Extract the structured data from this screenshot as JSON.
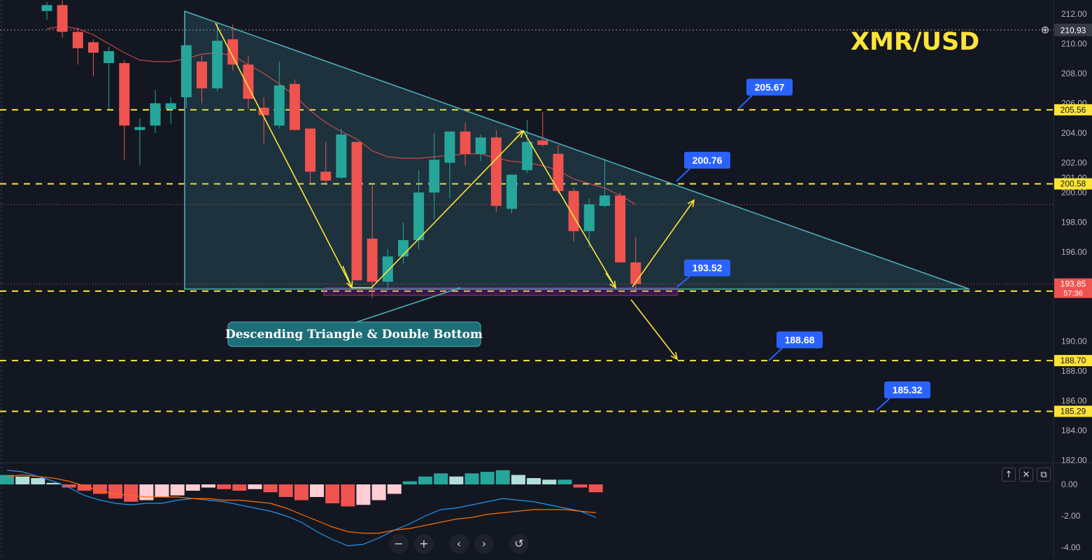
{
  "title": "XMR/USD",
  "chart_data": {
    "type": "candlestick",
    "pair": "XMR/USD",
    "price_axis": {
      "ticks": [
        "212.00",
        "210.00",
        "208.00",
        "206.00",
        "204.00",
        "202.00",
        "201.00",
        "200.00",
        "198.00",
        "196.00",
        "194.00",
        "190.00",
        "188.00",
        "186.00",
        "184.00",
        "182.00"
      ],
      "ylim": [
        181.5,
        212.5
      ]
    },
    "current_price": "210.93",
    "last_price": "193.85",
    "countdown": "57:36",
    "horizontal_levels": [
      {
        "label": "205.56",
        "value": 205.56
      },
      {
        "label": "200.58",
        "value": 200.58
      },
      {
        "label": "193.37",
        "value": 193.37
      },
      {
        "label": "188.70",
        "value": 188.7
      },
      {
        "label": "185.29",
        "value": 185.29
      }
    ],
    "callouts": [
      {
        "text": "205.67",
        "value": 205.67
      },
      {
        "text": "200.76",
        "value": 200.76
      },
      {
        "text": "193.52",
        "value": 193.52
      },
      {
        "text": "188.68",
        "value": 188.68
      },
      {
        "text": "185.32",
        "value": 185.32
      }
    ],
    "annotation": "Descending Triangle & Double Bottom",
    "candles": [
      {
        "o": 212.2,
        "h": 212.8,
        "l": 211.6,
        "c": 212.6
      },
      {
        "o": 212.6,
        "h": 212.9,
        "l": 210.4,
        "c": 210.8
      },
      {
        "o": 210.8,
        "h": 211.1,
        "l": 208.6,
        "c": 209.7
      },
      {
        "o": 210.1,
        "h": 210.3,
        "l": 207.8,
        "c": 209.4
      },
      {
        "o": 208.7,
        "h": 209.8,
        "l": 205.6,
        "c": 209.5
      },
      {
        "o": 208.7,
        "h": 208.9,
        "l": 202.2,
        "c": 204.5
      },
      {
        "o": 204.2,
        "h": 205.0,
        "l": 201.8,
        "c": 204.4
      },
      {
        "o": 204.5,
        "h": 206.9,
        "l": 204.0,
        "c": 206.0
      },
      {
        "o": 205.6,
        "h": 206.4,
        "l": 204.6,
        "c": 206.0
      },
      {
        "o": 206.4,
        "h": 209.9,
        "l": 205.7,
        "c": 209.9
      },
      {
        "o": 208.8,
        "h": 209.2,
        "l": 206.0,
        "c": 207.0
      },
      {
        "o": 207.0,
        "h": 211.4,
        "l": 206.8,
        "c": 210.2
      },
      {
        "o": 210.3,
        "h": 211.3,
        "l": 208.2,
        "c": 208.6
      },
      {
        "o": 208.6,
        "h": 209.2,
        "l": 205.6,
        "c": 206.3
      },
      {
        "o": 205.7,
        "h": 206.4,
        "l": 203.3,
        "c": 205.2
      },
      {
        "o": 204.5,
        "h": 208.8,
        "l": 204.3,
        "c": 207.2
      },
      {
        "o": 207.3,
        "h": 207.6,
        "l": 204.2,
        "c": 204.2
      },
      {
        "o": 204.3,
        "h": 204.3,
        "l": 200.6,
        "c": 201.4
      },
      {
        "o": 201.4,
        "h": 203.4,
        "l": 200.6,
        "c": 200.8
      },
      {
        "o": 201.0,
        "h": 204.3,
        "l": 200.9,
        "c": 203.9
      },
      {
        "o": 203.4,
        "h": 203.4,
        "l": 194.1,
        "c": 194.1
      },
      {
        "o": 196.9,
        "h": 200.5,
        "l": 192.9,
        "c": 194.0
      },
      {
        "o": 194.0,
        "h": 196.2,
        "l": 193.4,
        "c": 195.7
      },
      {
        "o": 195.7,
        "h": 198.0,
        "l": 195.2,
        "c": 196.8
      },
      {
        "o": 196.8,
        "h": 201.5,
        "l": 196.2,
        "c": 200.0
      },
      {
        "o": 200.0,
        "h": 204.0,
        "l": 198.2,
        "c": 202.2
      },
      {
        "o": 202.0,
        "h": 204.0,
        "l": 199.6,
        "c": 204.1
      },
      {
        "o": 204.1,
        "h": 204.7,
        "l": 201.8,
        "c": 202.6
      },
      {
        "o": 202.6,
        "h": 203.9,
        "l": 202.1,
        "c": 203.7
      },
      {
        "o": 203.7,
        "h": 204.2,
        "l": 198.7,
        "c": 199.1
      },
      {
        "o": 198.9,
        "h": 201.0,
        "l": 198.6,
        "c": 201.2
      },
      {
        "o": 201.5,
        "h": 204.9,
        "l": 201.3,
        "c": 203.4
      },
      {
        "o": 203.5,
        "h": 205.4,
        "l": 203.1,
        "c": 203.2
      },
      {
        "o": 202.6,
        "h": 203.2,
        "l": 199.9,
        "c": 200.1
      },
      {
        "o": 200.1,
        "h": 200.3,
        "l": 196.7,
        "c": 197.4
      },
      {
        "o": 197.4,
        "h": 199.6,
        "l": 196.3,
        "c": 199.2
      },
      {
        "o": 199.1,
        "h": 202.3,
        "l": 199.0,
        "c": 199.8
      },
      {
        "o": 199.8,
        "h": 200.0,
        "l": 195.3,
        "c": 195.3
      },
      {
        "o": 195.3,
        "h": 197.0,
        "l": 193.4,
        "c": 193.85
      }
    ],
    "oscillator": {
      "ticks": [
        "0.00",
        "-2.00",
        "-4.00"
      ],
      "ylim": [
        -4.5,
        1.0
      ],
      "histogram": [
        0.6,
        0.5,
        0.4,
        0.1,
        -0.2,
        -0.4,
        -0.6,
        -0.9,
        -1.1,
        -1.0,
        -0.8,
        -0.7,
        -0.4,
        -0.2,
        -0.3,
        -0.4,
        -0.3,
        -0.5,
        -0.8,
        -1.0,
        -0.8,
        -1.2,
        -1.4,
        -1.3,
        -1.0,
        -0.6,
        0.2,
        0.5,
        0.7,
        0.5,
        0.7,
        0.8,
        0.9,
        0.6,
        0.4,
        0.3,
        0.3,
        -0.2,
        -0.5
      ],
      "histogram_colors": {
        "rising_pos": "#26a69a",
        "falling_pos": "#b2dfdb",
        "falling_neg": "#ef5350",
        "rising_neg": "#ffcdd2"
      },
      "macd_line": [
        0.9,
        0.8,
        0.5,
        0.2,
        -0.2,
        -0.7,
        -1.0,
        -1.2,
        -1.3,
        -1.2,
        -1.2,
        -1.0,
        -0.9,
        -1.0,
        -1.1,
        -1.3,
        -1.5,
        -1.7,
        -2.0,
        -2.4,
        -3.0,
        -3.5,
        -3.9,
        -3.8,
        -3.4,
        -2.9,
        -2.5,
        -2.0,
        -1.6,
        -1.5,
        -1.3,
        -1.1,
        -0.9,
        -1.0,
        -1.1,
        -1.3,
        -1.5,
        -1.7,
        -2.1
      ],
      "signal_line": [
        0.5,
        0.6,
        0.5,
        0.4,
        0.2,
        -0.1,
        -0.4,
        -0.6,
        -0.7,
        -0.8,
        -0.8,
        -0.8,
        -0.9,
        -0.9,
        -1.0,
        -1.0,
        -1.1,
        -1.2,
        -1.5,
        -1.9,
        -2.3,
        -2.7,
        -3.0,
        -3.1,
        -3.1,
        -2.9,
        -2.8,
        -2.6,
        -2.4,
        -2.2,
        -2.1,
        -1.9,
        -1.8,
        -1.7,
        -1.6,
        -1.6,
        -1.6,
        -1.7,
        -1.8
      ]
    },
    "colors": {
      "up": "#26a69a",
      "down": "#ef5350",
      "level": "#ffe438",
      "callout": "#2962ff",
      "triangle": "#4fb3bf",
      "ma": "#ef5350",
      "macd": "#2196f3",
      "signal": "#ff6d00"
    },
    "moving_average": [
      211.0,
      211.2,
      211.0,
      210.6,
      210.0,
      209.4,
      208.9,
      208.8,
      208.8,
      209.0,
      209.3,
      209.4,
      209.2,
      208.6,
      208.0,
      207.3,
      206.5,
      205.5,
      204.7,
      204.1,
      203.6,
      202.8,
      202.4,
      202.3,
      202.3,
      202.4,
      202.5,
      202.6,
      202.6,
      202.3,
      202.1,
      202.0,
      201.8,
      201.5,
      200.9,
      200.6,
      200.3,
      199.8,
      199.2
    ]
  },
  "nav": {
    "zoom_out": "−",
    "zoom_in": "+",
    "left": "‹",
    "right": "›",
    "reset": "↺"
  },
  "panel_controls": {
    "up": "↑",
    "close": "✕",
    "maximize": "⧉"
  },
  "crosshair_icon": "⊕"
}
